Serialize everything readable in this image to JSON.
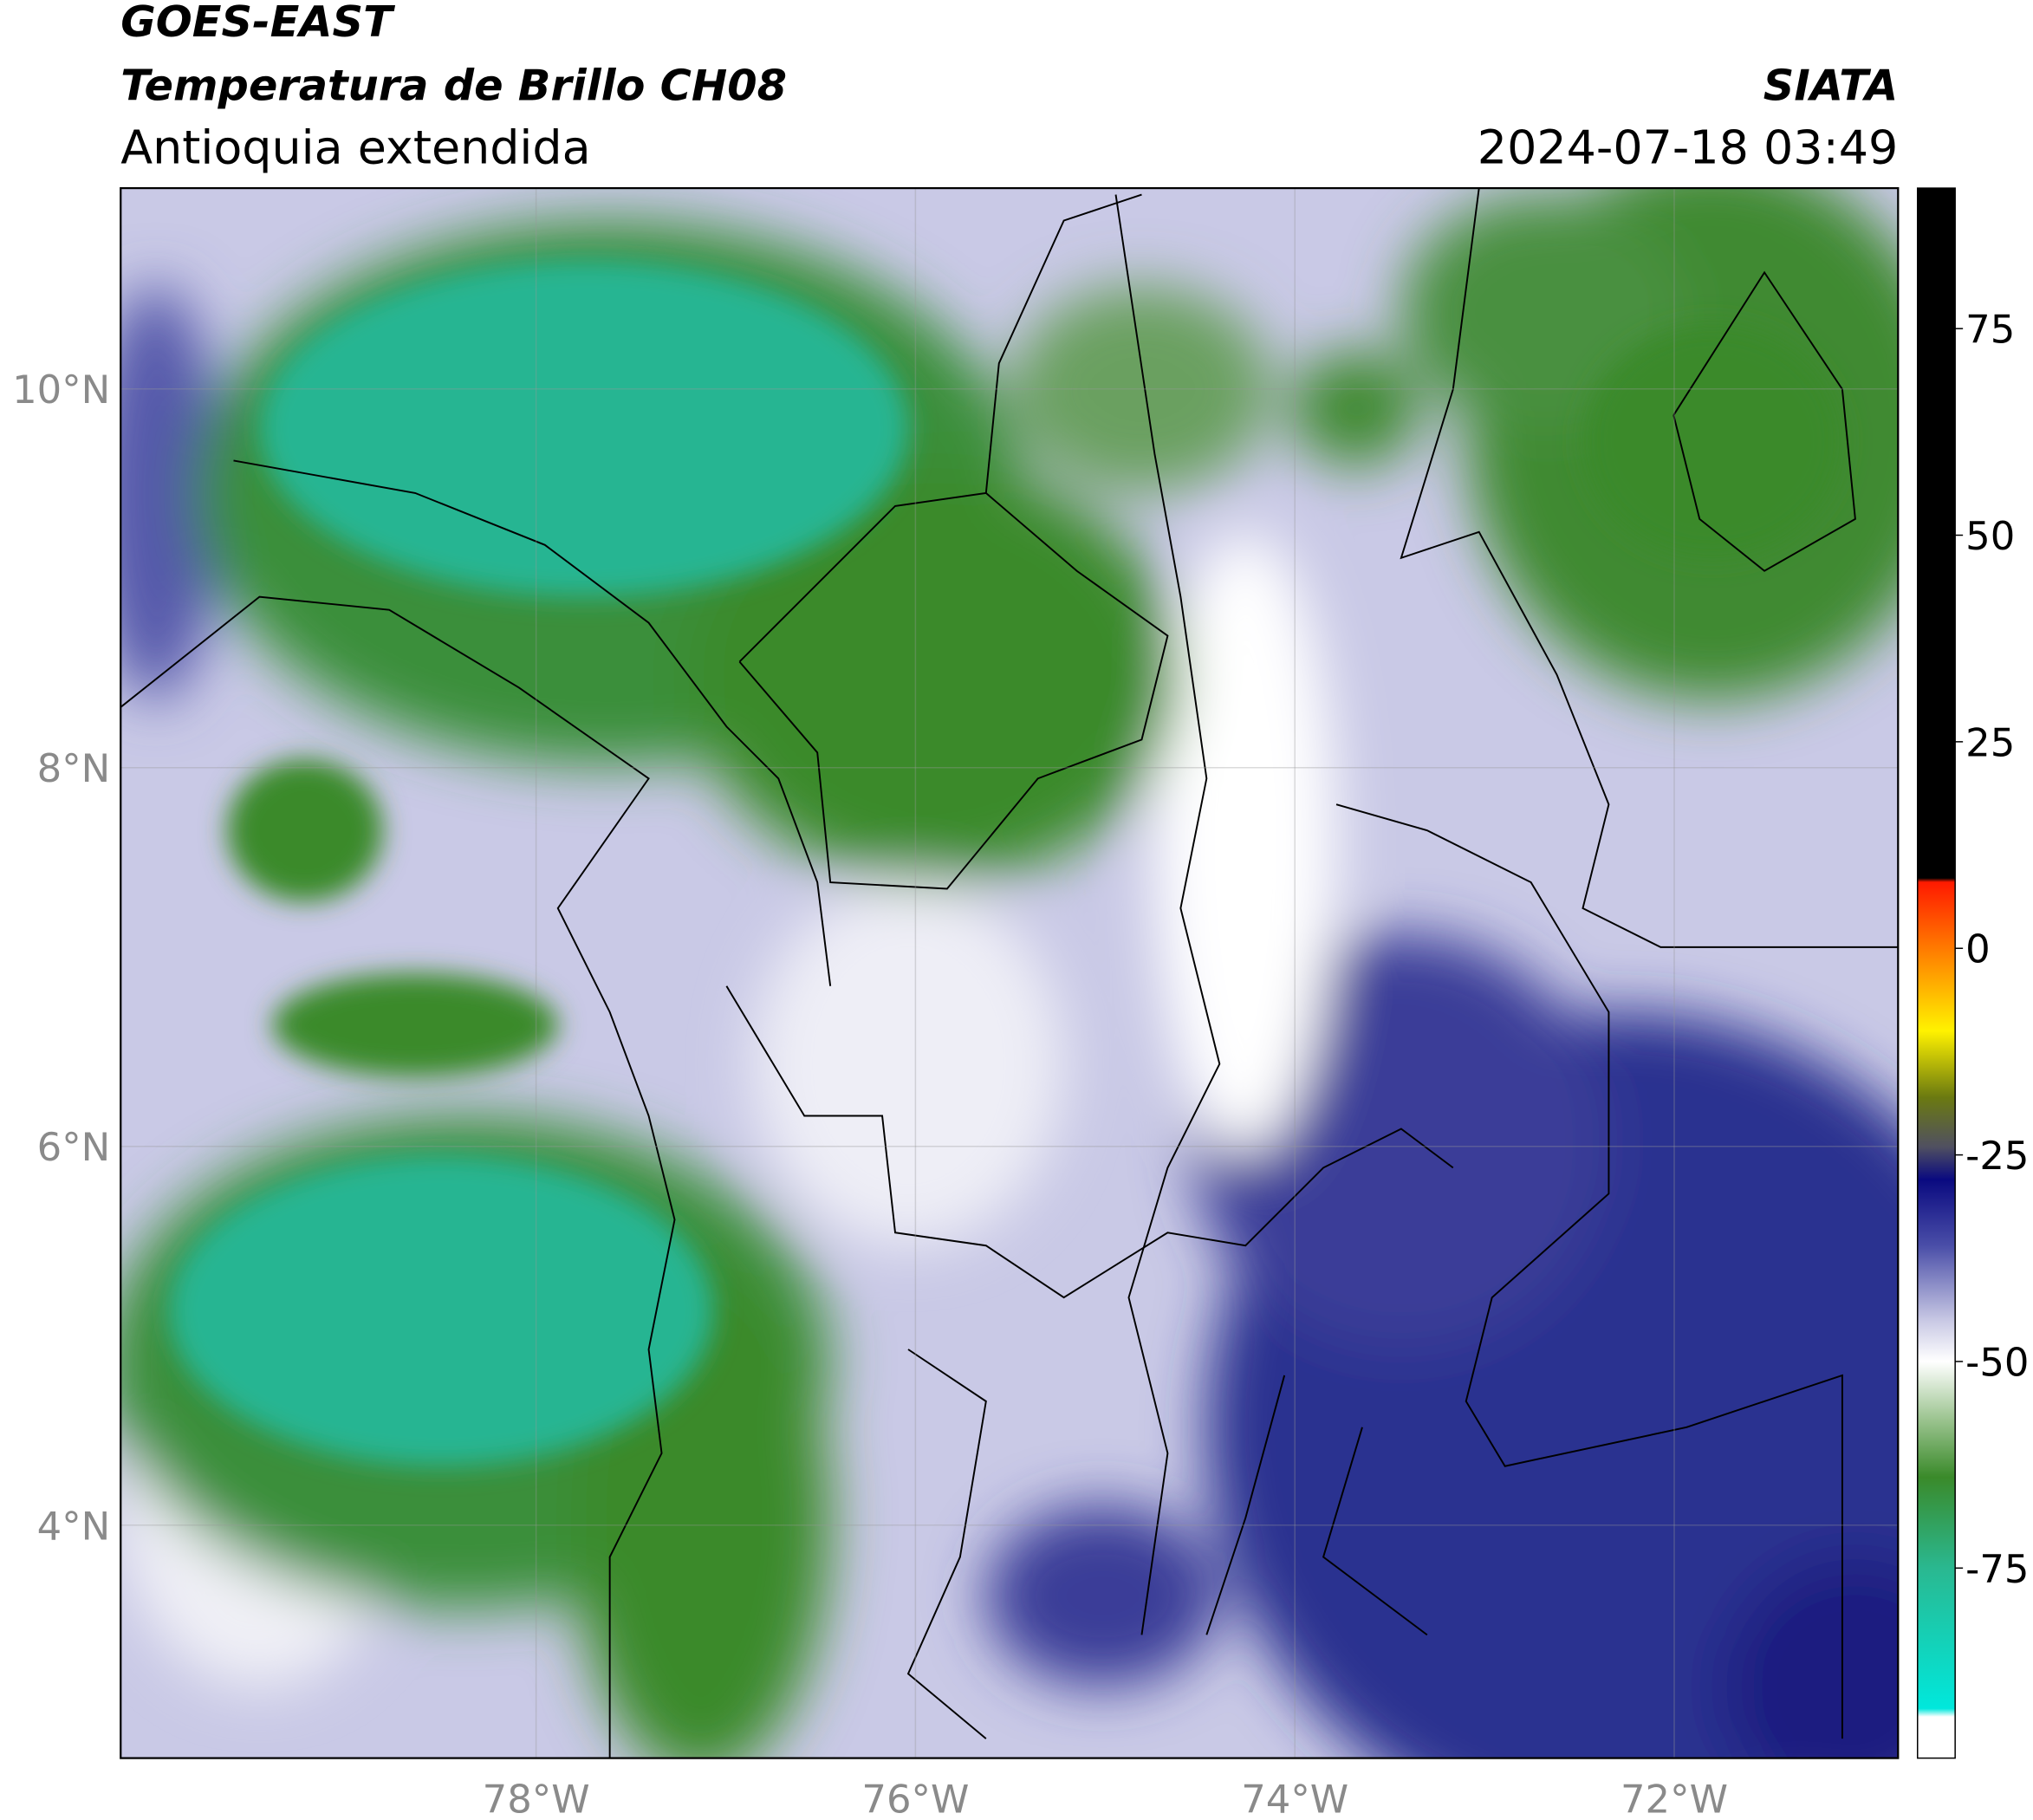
{
  "header": {
    "title": "GOES-EAST",
    "subtitle": "Temperatura de Brillo CH08",
    "region": "Antioquia extendida",
    "agency": "SIATA",
    "datetime": "2024-07-18 03:49"
  },
  "map": {
    "lon_lim": [
      -80.19,
      -70.82
    ],
    "lat_lim": [
      2.77,
      11.06
    ],
    "lon_ticks": [
      {
        "value": -78,
        "label": "78°W"
      },
      {
        "value": -76,
        "label": "76°W"
      },
      {
        "value": -74,
        "label": "74°W"
      },
      {
        "value": -72,
        "label": "72°W"
      }
    ],
    "lat_ticks": [
      {
        "value": 10,
        "label": "10°N"
      },
      {
        "value": 8,
        "label": "8°N"
      },
      {
        "value": 6,
        "label": "6°N"
      },
      {
        "value": 4,
        "label": "4°N"
      }
    ]
  },
  "colorbar": {
    "lim": [
      -98,
      92
    ],
    "ticks": [
      75,
      50,
      25,
      0,
      -25,
      -50,
      -75
    ],
    "stops": [
      {
        "value": 92,
        "color": "#000000"
      },
      {
        "value": 8.5,
        "color": "#000000"
      },
      {
        "value": 8,
        "color": "#ff1a00"
      },
      {
        "value": 0,
        "color": "#ff7a00"
      },
      {
        "value": -10,
        "color": "#fff200"
      },
      {
        "value": -18,
        "color": "#6b7a10"
      },
      {
        "value": -24,
        "color": "#505060"
      },
      {
        "value": -28,
        "color": "#0a0a80"
      },
      {
        "value": -36,
        "color": "#4a4ea8"
      },
      {
        "value": -45,
        "color": "#c8c8e4"
      },
      {
        "value": -50,
        "color": "#ffffff"
      },
      {
        "value": -57,
        "color": "#9cc490"
      },
      {
        "value": -64,
        "color": "#3a8a2a"
      },
      {
        "value": -75,
        "color": "#2ab890"
      },
      {
        "value": -92,
        "color": "#00e8dc"
      },
      {
        "value": -93,
        "color": "#ffffff"
      },
      {
        "value": -98,
        "color": "#ffffff"
      }
    ]
  }
}
